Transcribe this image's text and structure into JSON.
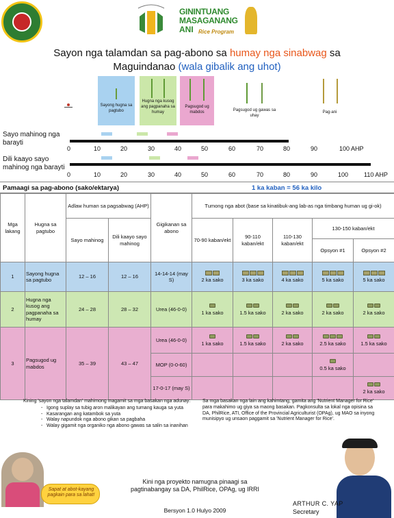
{
  "header": {
    "title_part1": "Sayon nga talamdan sa pag-abono sa ",
    "title_highlight": "humay nga sinabwag",
    "title_part2": " sa",
    "title_line2": "Maguindanao ",
    "title_line2_blue": "(wala gibalik ang uhot)",
    "program_name": [
      "GININTUANG",
      "MASAGANANG",
      "ANI"
    ],
    "program_sub": "Rice Program"
  },
  "stages": [
    {
      "label": "Sayong hugna sa pagtubo",
      "color": "#a9d2f0"
    },
    {
      "label": "Hugna nga kusog ang pagpanaha sa humay",
      "color": "#cbe7a9"
    },
    {
      "label": "Pagsugod ug mabdos",
      "color": "#eaa7cf"
    },
    {
      "label": "Pagsugod ug gawas sa uhay",
      "color": ""
    },
    {
      "label": "Pag-ani",
      "color": ""
    }
  ],
  "scales": [
    {
      "label": "Sayo mahinog nga barayti",
      "ticks": [
        "0",
        "10",
        "20",
        "30",
        "40",
        "50",
        "60",
        "70",
        "80",
        "90",
        "100 AHP"
      ]
    },
    {
      "label": "Dili kaayo sayo mahinog nga barayti",
      "ticks": [
        "0",
        "10",
        "20",
        "30",
        "40",
        "50",
        "60",
        "70",
        "80",
        "90",
        "100",
        "110 AHP"
      ]
    }
  ],
  "table": {
    "title_left": "Pamaagi sa pag-abono (sako/ektarya)",
    "title_right": "1 ka kaban = 56 ka kilo",
    "h_mga_lakang": "Mga lakang",
    "h_hugna": "Hugna sa pagtubo",
    "h_adlaw": "Adlaw human sa pagsabwag (AHP)",
    "h_sayo": "Sayo mahinog",
    "h_dili": "Dili kaayo sayo mahinog",
    "h_gigikanan": "Gigikanan sa abono",
    "h_tumong": "Tumong nga abot (base sa kinatibuk-ang lab-as nga timbang human ug gi-ok)",
    "h_y1": "70-90 kaban/ekt",
    "h_y2": "90-110 kaban/ekt",
    "h_y3": "110-130 kaban/ekt",
    "h_y4": "130-150 kaban/ekt",
    "h_op1": "Opsyon #1",
    "h_op2": "Opsyon #2",
    "rows": [
      {
        "step": "1",
        "stage": "Sayong hugna sa pagtubo",
        "sayo": "12 – 16",
        "dili": "12 – 16",
        "source": "14-14-14 (may S)",
        "y1": "2 ka sako",
        "y2": "3 ka sako",
        "y3": "4 ka sako",
        "op1": "5 ka sako",
        "op2": "5 ka sako"
      },
      {
        "step": "2",
        "stage": "Hugna nga kusog ang pagpanaha sa humay",
        "sayo": "24 – 28",
        "dili": "28 – 32",
        "source": "Urea (46-0-0)",
        "y1": "1 ka sako",
        "y2": "1.5 ka sako",
        "y3": "2 ka sako",
        "op1": "2 ka sako",
        "op2": "2 ka sako"
      },
      {
        "step": "3",
        "stage": "Pagsugod ug mabdos",
        "sayo": "35 – 39",
        "dili": "43 – 47",
        "source_a": "Urea (46-0-0)",
        "a_y1": "1 ka sako",
        "a_y2": "1.5 ka sako",
        "a_y3": "2 ka sako",
        "a_op1": "2.5 ka sako",
        "a_op2": "1.5 ka sako",
        "source_b": "MOP (0-0-60)",
        "b_op1": "0.5 ka sako",
        "source_c": "17-0-17 (may S)",
        "c_op2": "2 ka sako"
      }
    ]
  },
  "notes_left": {
    "intro": "Kining 'sayon nga talamdan' mahimong magamit sa mga basakan nga adunay:",
    "items": [
      "Igong suplay sa tubig aron malikayan ang tumang kauga sa yuta",
      "Kasarangan ang katambok sa yuta",
      "Walay napundok nga abono gikan sa pagbaha",
      "Walay gigamit nga organiko nga abono gawas sa salin sa inanihan"
    ]
  },
  "notes_right": "Sa mga basakan nga lain ang kahimtang, gamita ang 'Nutrient Manager for Rice' para makahimo ug giya sa maong basakan. Pagkonsulta sa lokal nga opisina sa DA, PhilRice, ATI, Office of the Provincial Agriculturist (OPAg), ug MAO sa inyong munisipyo ug unsaon paggamit sa 'Nutrient Manager for Rice'.",
  "footer": {
    "bubble": "Sapat at abot-kayang pagkain para sa lahat!",
    "project": "Kini nga proyekto namugna pinaagi sa pagtinabangay sa DA, PhilRice, OPAg, ug IRRI",
    "version": "Bersyon 1.0 Hulyo 2009",
    "name": "ARTHUR C. YAP",
    "role": "Secretary"
  }
}
